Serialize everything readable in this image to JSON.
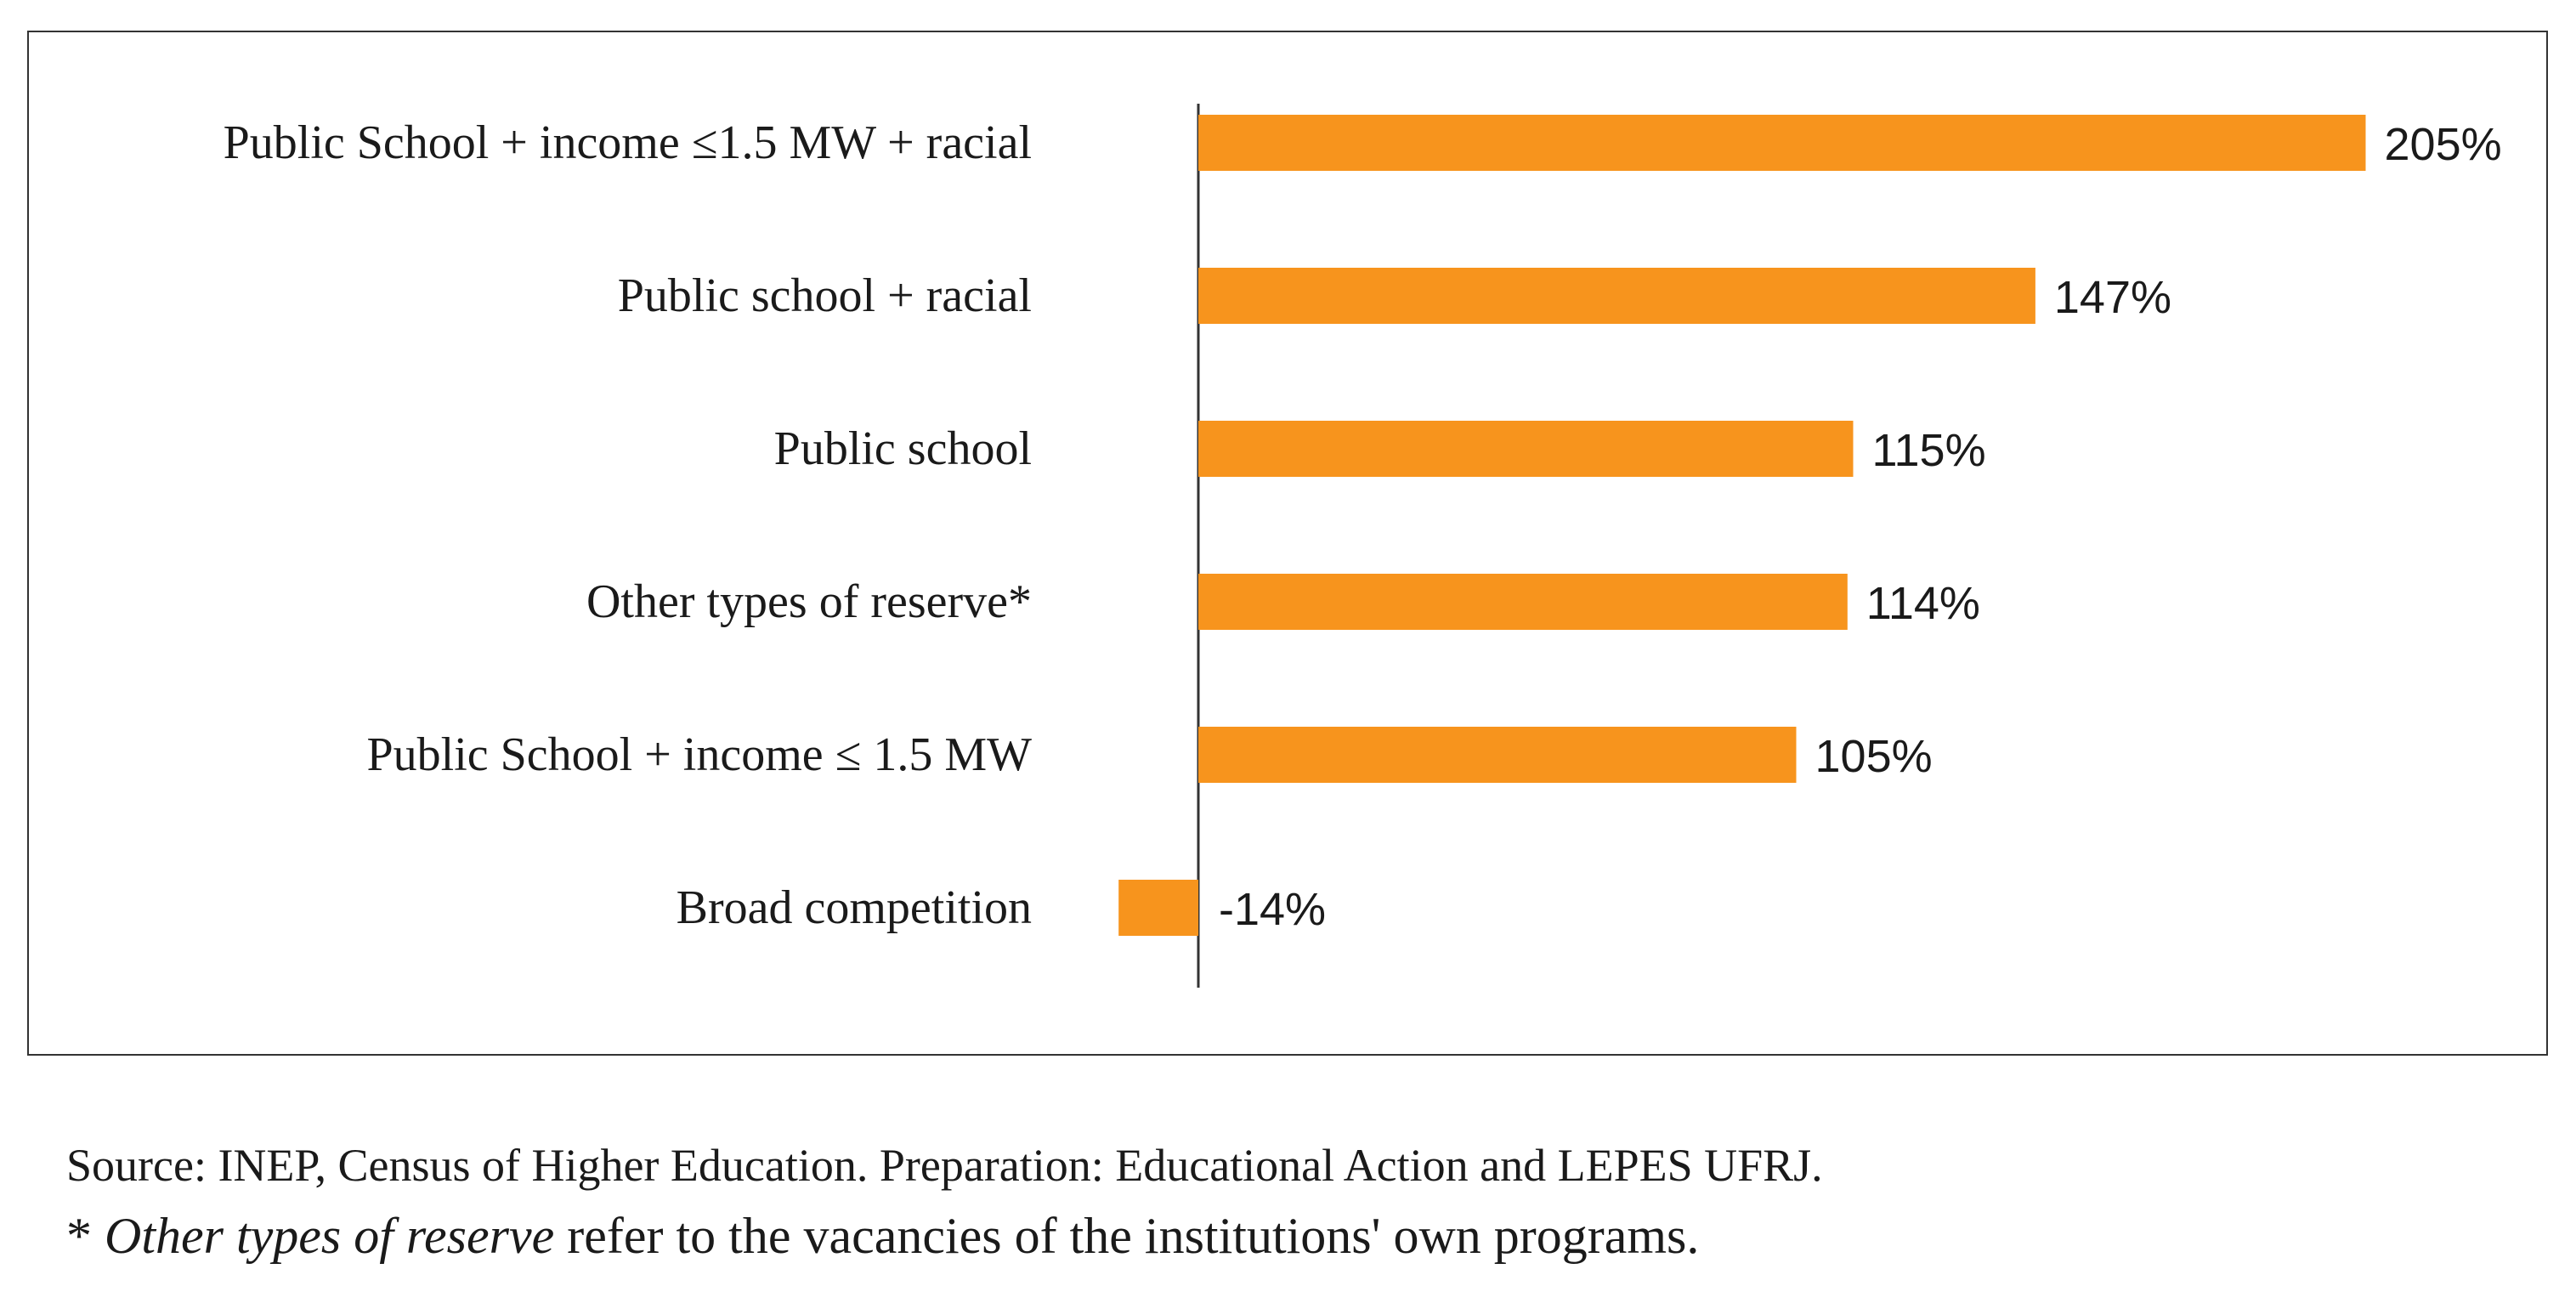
{
  "chart_data": {
    "type": "bar",
    "orientation": "horizontal",
    "categories": [
      "Public School + income ≤1.5 MW + racial",
      "Public school + racial",
      "Public school",
      "Other types of reserve*",
      "Public School + income ≤ 1.5 MW",
      "Broad competition"
    ],
    "values": [
      205,
      147,
      115,
      114,
      105,
      -14
    ],
    "value_labels": [
      "205%",
      "147%",
      "115%",
      "114%",
      "105%",
      "-14%"
    ],
    "xlim": [
      -14,
      205
    ],
    "title": "",
    "xlabel": "",
    "ylabel": "",
    "grid": false,
    "bar_color": "#F7941D"
  },
  "notes": {
    "source": "Source: INEP, Census of Higher Education. Preparation: Educational Action and LEPES UFRJ.",
    "footnote_prefix": "* ",
    "footnote_emphasis": "Other types of reserve",
    "footnote_rest": " refer to the vacancies of the institutions' own programs."
  }
}
